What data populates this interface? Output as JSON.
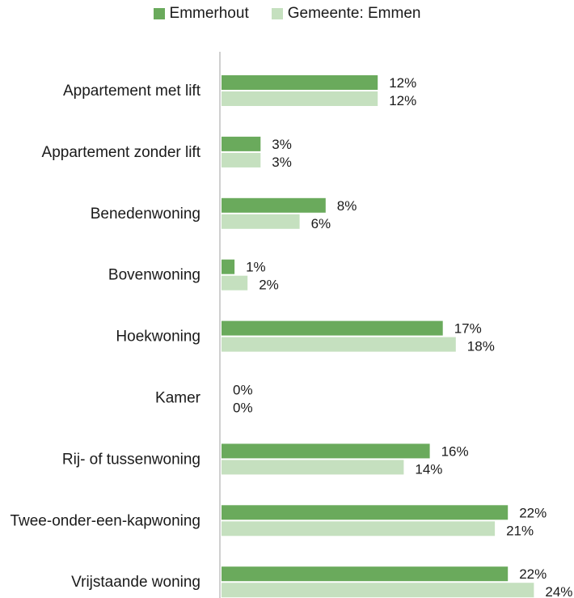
{
  "legend": {
    "series0": "Emmerhout",
    "series1": "Gemeente: Emmen"
  },
  "colors": {
    "series0": "#6aaa5c",
    "series1": "#c5e0bf",
    "axis": "#d0d0d0"
  },
  "chart_data": {
    "type": "bar",
    "orientation": "horizontal",
    "categories": [
      "Appartement met lift",
      "Appartement zonder lift",
      "Benedenwoning",
      "Bovenwoning",
      "Hoekwoning",
      "Kamer",
      "Rij- of tussenwoning",
      "Twee-onder-een-kapwoning",
      "Vrijstaande woning"
    ],
    "series": [
      {
        "name": "Emmerhout",
        "values": [
          12,
          3,
          8,
          1,
          17,
          0,
          16,
          22,
          22
        ]
      },
      {
        "name": "Gemeente: Emmen",
        "values": [
          12,
          3,
          6,
          2,
          18,
          0,
          14,
          21,
          24
        ]
      }
    ],
    "value_suffix": "%",
    "xlim": [
      0,
      24
    ],
    "grid": false,
    "legend_position": "top-center"
  }
}
